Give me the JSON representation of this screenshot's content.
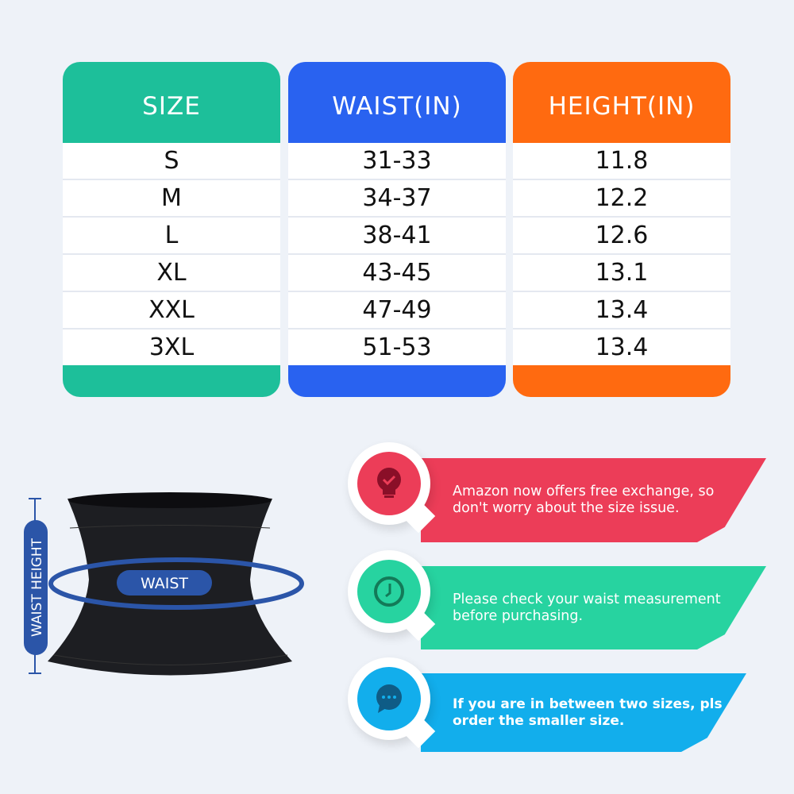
{
  "size_chart": {
    "columns": [
      {
        "header": "SIZE",
        "color": "#1dbf9a",
        "values": [
          "S",
          "M",
          "L",
          "XL",
          "XXL",
          "3XL"
        ]
      },
      {
        "header": "WAIST(IN)",
        "color": "#2962f0",
        "values": [
          "31-33",
          "34-37",
          "38-41",
          "43-45",
          "47-49",
          "51-53"
        ]
      },
      {
        "header": "HEIGHT(IN)",
        "color": "#ff6a10",
        "values": [
          "11.8",
          "12.2",
          "12.6",
          "13.1",
          "13.4",
          "13.4"
        ]
      }
    ]
  },
  "diagram": {
    "waist_label": "WAIST",
    "height_label": "WAIST HEIGHT",
    "accent": "#2b55a8"
  },
  "tips": [
    {
      "icon": "lightbulb-check-icon",
      "text": "Amazon now offers free exchange, so don't worry about the size issue.",
      "color": "#ec3d58"
    },
    {
      "icon": "clock-icon",
      "text": "Please check your waist measurement before purchasing.",
      "color": "#27d3a0"
    },
    {
      "icon": "chat-bubble-icon",
      "text": "If you are in between two sizes, pls order the smaller size.",
      "color": "#12aeec"
    }
  ]
}
